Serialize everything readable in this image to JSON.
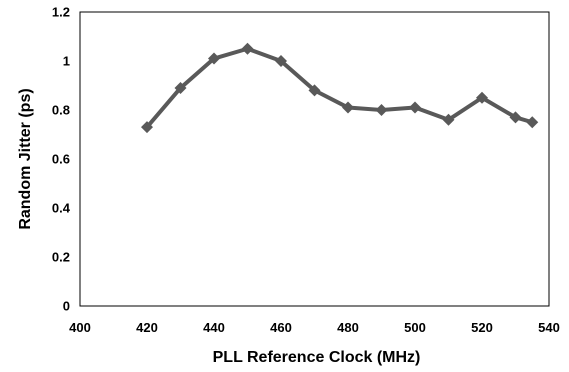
{
  "chart_data": {
    "type": "line",
    "title": "",
    "xlabel": "PLL Reference Clock (MHz)",
    "ylabel": "Random Jitter (ps)",
    "xlim": [
      400,
      540
    ],
    "ylim": [
      0,
      1.2
    ],
    "x_ticks": [
      "400",
      "420",
      "440",
      "460",
      "480",
      "500",
      "520",
      "540"
    ],
    "y_ticks": [
      "0",
      "0.2",
      "0.4",
      "0.6",
      "0.8",
      "1",
      "1.2"
    ],
    "grid": false,
    "legend": "none",
    "series": [
      {
        "color": "#595959",
        "marker": "diamond",
        "x": [
          420,
          430,
          440,
          450,
          460,
          470,
          480,
          490,
          500,
          510,
          520,
          530,
          535
        ],
        "y": [
          0.73,
          0.89,
          1.01,
          1.05,
          1.0,
          0.88,
          0.81,
          0.8,
          0.81,
          0.76,
          0.85,
          0.77,
          0.75
        ]
      }
    ]
  }
}
